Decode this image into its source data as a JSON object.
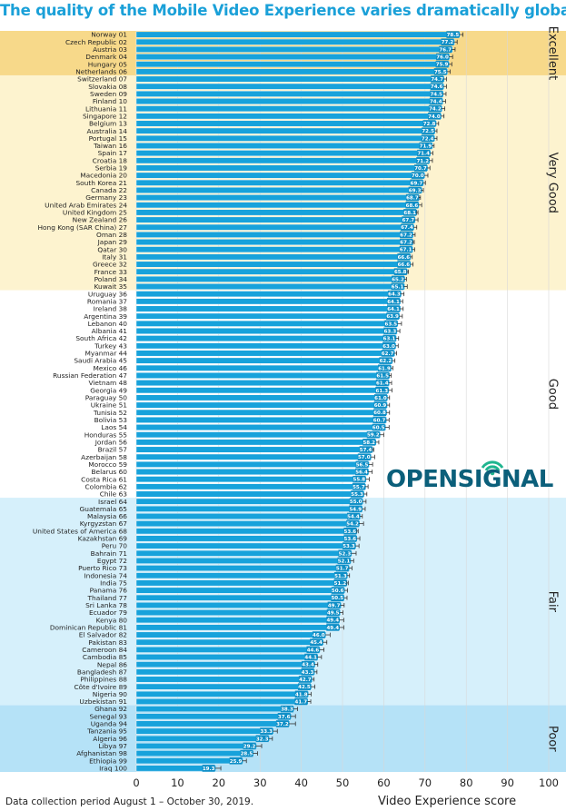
{
  "chart_data": {
    "type": "bar",
    "orientation": "horizontal",
    "title": "The quality of the Mobile Video Experience varies dramatically globally",
    "xlabel": "Video Experience score",
    "xlim": [
      0,
      100
    ],
    "xticks": [
      0,
      10,
      20,
      30,
      40,
      50,
      60,
      70,
      80,
      90,
      100
    ],
    "error_bars": true,
    "footnote": "Data collection period August 1 – October 30, 2019.",
    "logo": "OPENSIGNAL",
    "bands": [
      {
        "label": "Excellent",
        "from": 1,
        "to": 6,
        "color": "#f7d98a"
      },
      {
        "label": "Very Good",
        "from": 7,
        "to": 35,
        "color": "#fdf3cf"
      },
      {
        "label": "Good",
        "from": 36,
        "to": 63,
        "color": "#ffffff"
      },
      {
        "label": "Fair",
        "from": 64,
        "to": 91,
        "color": "#d6f0fb"
      },
      {
        "label": "Poor",
        "from": 92,
        "to": 100,
        "color": "#b5e2f7"
      }
    ],
    "categories": [
      "Norway 01",
      "Czech Republic 02",
      "Austria 03",
      "Denmark 04",
      "Hungary 05",
      "Netherlands 06",
      "Switzerland 07",
      "Slovakia 08",
      "Sweden 09",
      "Finland 10",
      "Lithuania 11",
      "Singapore 12",
      "Belgium 13",
      "Australia 14",
      "Portugal 15",
      "Taiwan 16",
      "Spain 17",
      "Croatia 18",
      "Serbia 19",
      "Macedonia 20",
      "South Korea 21",
      "Canada 22",
      "Germany 23",
      "United Arab Emirates 24",
      "United Kingdom 25",
      "New Zealand 26",
      "Hong Kong (SAR China) 27",
      "Oman 28",
      "Japan 29",
      "Qatar 30",
      "Italy 31",
      "Greece 32",
      "France 33",
      "Poland 34",
      "Kuwait 35",
      "Uruguay 36",
      "Romania 37",
      "Ireland 38",
      "Argentina 39",
      "Lebanon 40",
      "Albania 41",
      "South Africa 42",
      "Turkey 43",
      "Myanmar 44",
      "Saudi Arabia 45",
      "Mexico 46",
      "Russian Federation 47",
      "Vietnam 48",
      "Georgia 49",
      "Paraguay 50",
      "Ukraine 51",
      "Tunisia 52",
      "Bolivia 53",
      "Laos 54",
      "Honduras 55",
      "Jordan 56",
      "Brazil 57",
      "Azerbaijan 58",
      "Morocco 59",
      "Belarus 60",
      "Costa Rica 61",
      "Colombia 62",
      "Chile 63",
      "Israel 64",
      "Guatemala 65",
      "Malaysia 66",
      "Kyrgyzstan 67",
      "United States of America 68",
      "Kazakhstan 69",
      "Peru 70",
      "Bahrain 71",
      "Egypt 72",
      "Puerto Rico 73",
      "Indonesia 74",
      "India 75",
      "Panama 76",
      "Thailand 77",
      "Sri Lanka 78",
      "Ecuador 79",
      "Kenya 80",
      "Dominican Republic 81",
      "El Salvador 82",
      "Pakistan 83",
      "Cameroon 84",
      "Cambodia 85",
      "Nepal 86",
      "Bangladesh 87",
      "Philippines 88",
      "Côte d'Ivoire 89",
      "Nigeria 90",
      "Uzbekistan 91",
      "Ghana 92",
      "Senegal 93",
      "Uganda 94",
      "Tanzania 95",
      "Algeria 96",
      "Libya 97",
      "Afghanistan 98",
      "Ethiopia 99",
      "Iraq 100"
    ],
    "values": [
      78.5,
      77.2,
      76.7,
      76.0,
      75.9,
      75.5,
      74.7,
      74.6,
      74.5,
      74.4,
      74.2,
      74.0,
      72.8,
      72.5,
      72.4,
      71.9,
      71.4,
      71.2,
      70.7,
      70.0,
      69.7,
      69.3,
      68.7,
      68.6,
      68.1,
      67.7,
      67.4,
      67.2,
      67.2,
      67.1,
      66.6,
      66.6,
      65.8,
      65.2,
      65.1,
      64.3,
      64.1,
      64.1,
      63.9,
      63.5,
      63.3,
      63.1,
      63.0,
      62.7,
      62.2,
      61.9,
      61.5,
      61.4,
      61.3,
      61.0,
      60.9,
      60.8,
      60.7,
      60.5,
      59.2,
      58.2,
      57.4,
      57.0,
      56.5,
      56.4,
      55.8,
      55.7,
      55.3,
      55.0,
      54.9,
      54.4,
      54.2,
      53.6,
      53.6,
      53.3,
      52.3,
      52.1,
      51.7,
      51.3,
      51.2,
      50.6,
      50.5,
      49.7,
      49.5,
      49.4,
      49.4,
      46.0,
      45.4,
      44.6,
      44.1,
      43.4,
      43.3,
      42.7,
      42.5,
      41.8,
      41.7,
      38.3,
      37.6,
      37.2,
      33.3,
      32.3,
      29.2,
      28.5,
      25.9,
      19.3
    ],
    "errors": [
      0.7,
      0.6,
      0.6,
      0.7,
      0.6,
      0.6,
      0.5,
      0.6,
      0.6,
      0.6,
      0.6,
      0.6,
      0.5,
      0.4,
      0.5,
      0.3,
      0.5,
      0.6,
      0.5,
      0.7,
      0.4,
      0.3,
      0.2,
      0.6,
      0.2,
      0.6,
      0.6,
      0.4,
      0.2,
      0.4,
      0.3,
      0.5,
      0.2,
      0.3,
      0.6,
      0.6,
      0.5,
      0.6,
      0.6,
      0.8,
      0.6,
      0.5,
      0.5,
      0.4,
      0.5,
      0.3,
      0.3,
      0.5,
      0.7,
      0.4,
      0.5,
      0.6,
      0.6,
      0.8,
      0.8,
      0.6,
      0.2,
      0.8,
      0.8,
      0.8,
      0.7,
      0.5,
      0.6,
      0.7,
      0.6,
      0.4,
      0.9,
      0.2,
      0.6,
      0.7,
      1.0,
      0.6,
      0.6,
      0.4,
      0.2,
      0.6,
      0.6,
      0.7,
      0.6,
      0.9,
      0.9,
      1.0,
      0.8,
      0.9,
      0.8,
      0.6,
      0.5,
      0.4,
      0.8,
      0.6,
      0.6,
      0.8,
      1.0,
      1.4,
      0.9,
      0.7,
      1.2,
      0.9,
      0.8,
      1.2
    ]
  },
  "colors": {
    "bar": "#17a2db",
    "bar_border": "#ffffff",
    "title": "#1aa0d8",
    "logo_text": "#0b5f7a",
    "logo_accent": "#1fb58f",
    "text": "#222222"
  }
}
